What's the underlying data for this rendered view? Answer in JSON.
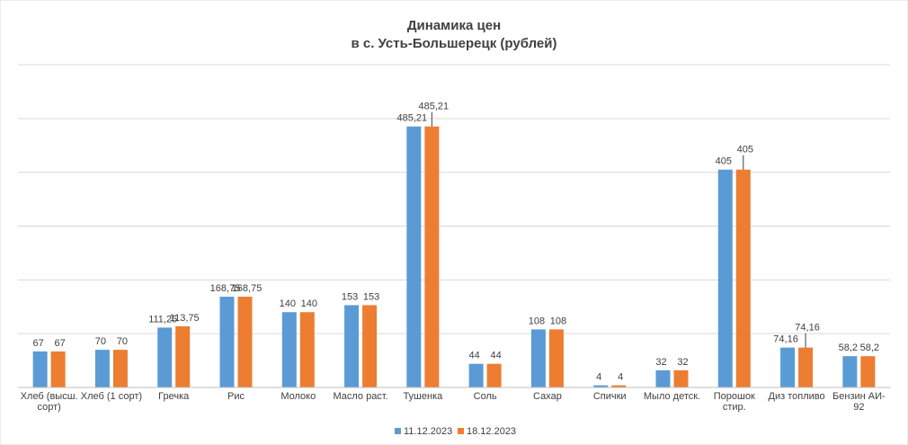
{
  "chart_data": {
    "type": "bar",
    "title_line1": "Динамика цен",
    "title_line2": "в с. Усть-Большерецк (рублей)",
    "categories": [
      [
        "Хлеб (высш.",
        "сорт)"
      ],
      [
        "Хлеб (1 сорт)"
      ],
      [
        "Гречка"
      ],
      [
        "Рис"
      ],
      [
        "Молоко"
      ],
      [
        "Масло раст."
      ],
      [
        "Тушенка"
      ],
      [
        "Соль"
      ],
      [
        "Сахар"
      ],
      [
        "Спички"
      ],
      [
        "Мыло детск."
      ],
      [
        "Порошок",
        "стир."
      ],
      [
        "Диз топливо"
      ],
      [
        "Бензин АИ-",
        "92"
      ]
    ],
    "series": [
      {
        "name": "11.12.2023",
        "color": "#5B9BD5",
        "values": [
          67,
          70,
          111.25,
          168.75,
          140,
          153,
          485.21,
          44,
          108,
          4,
          32,
          405,
          74.16,
          58.2
        ],
        "labels": [
          "67",
          "70",
          "111,25",
          "168,75",
          "140",
          "153",
          "485,21",
          "44",
          "108",
          "4",
          "32",
          "405",
          "74,16",
          "58,2"
        ]
      },
      {
        "name": "18.12.2023",
        "color": "#ED7D31",
        "values": [
          67,
          70,
          113.75,
          168.75,
          140,
          153,
          485.21,
          44,
          108,
          4,
          32,
          405,
          74.16,
          58.2
        ],
        "labels": [
          "67",
          "70",
          "113,75",
          "168,75",
          "140",
          "153",
          "485,21",
          "44",
          "108",
          "4",
          "32",
          "405",
          "74,16",
          "58,2"
        ]
      }
    ],
    "ylim": [
      0,
      600
    ],
    "ytick_step": 100,
    "grid": true,
    "legend_position": "bottom",
    "xlabel": "",
    "ylabel": ""
  }
}
